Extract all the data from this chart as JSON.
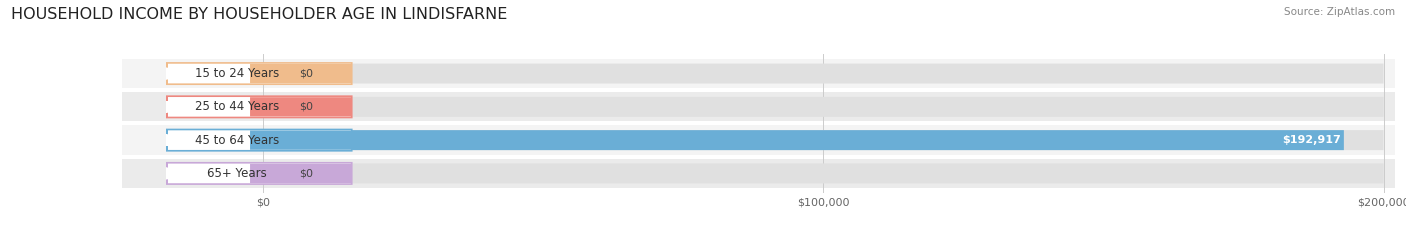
{
  "title": "HOUSEHOLD INCOME BY HOUSEHOLDER AGE IN LINDISFARNE",
  "source": "Source: ZipAtlas.com",
  "categories": [
    "15 to 24 Years",
    "25 to 44 Years",
    "45 to 64 Years",
    "65+ Years"
  ],
  "values": [
    0,
    0,
    192917,
    0
  ],
  "max_value": 200000,
  "bar_colors": [
    "#f0bc8c",
    "#ee8880",
    "#6aaed6",
    "#c8a8d8"
  ],
  "value_labels": [
    "$0",
    "$0",
    "$192,917",
    "$0"
  ],
  "x_ticks": [
    0,
    100000,
    200000
  ],
  "x_tick_labels": [
    "$0",
    "$100,000",
    "$200,000"
  ],
  "row_bg_colors": [
    "#f4f4f4",
    "#ebebeb",
    "#f4f4f4",
    "#ebebeb"
  ],
  "track_color": "#e0e0e0",
  "background_color": "#ffffff",
  "title_fontsize": 11.5,
  "label_fontsize": 8.5,
  "value_fontsize": 8,
  "source_fontsize": 7.5
}
